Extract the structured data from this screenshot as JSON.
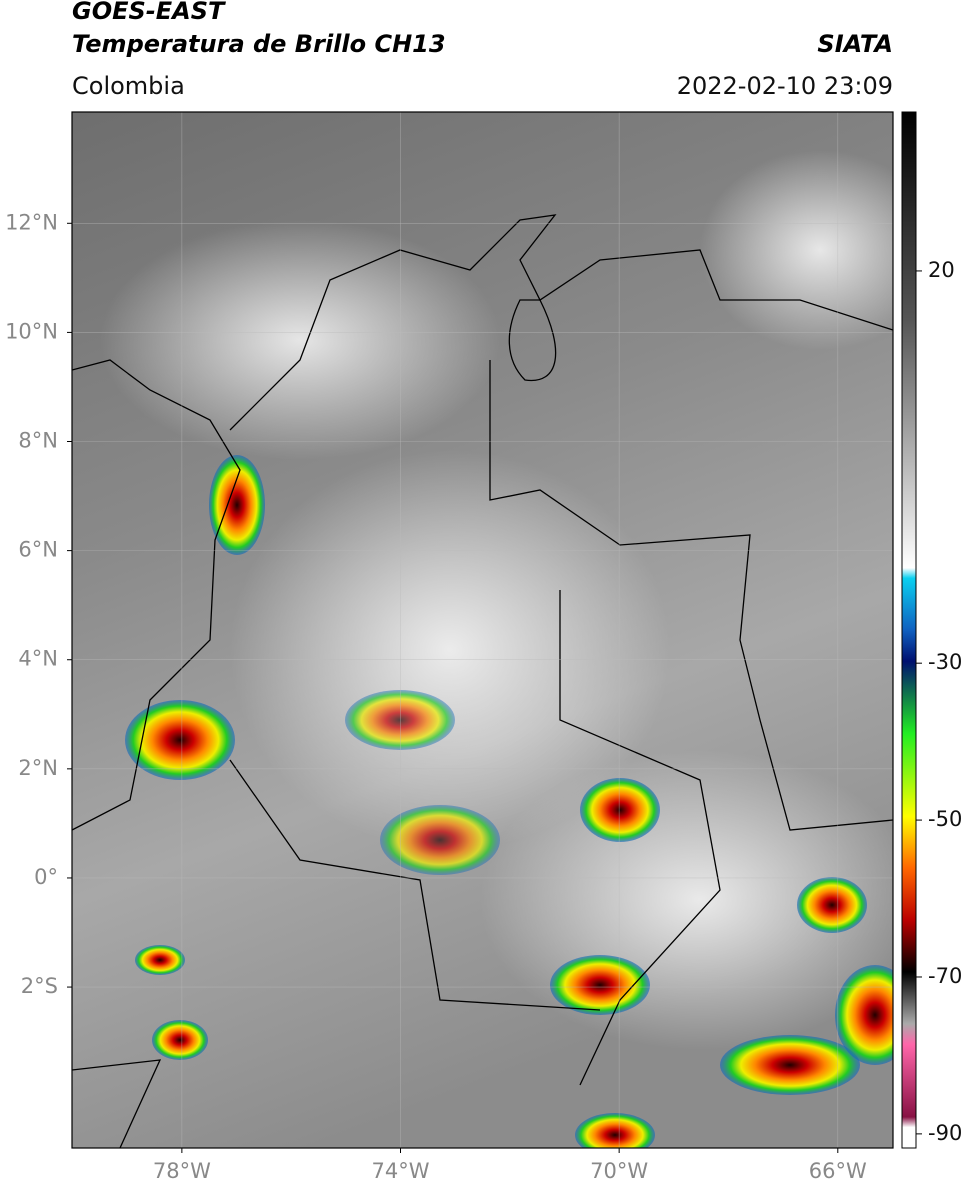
{
  "header": {
    "title": "GOES-EAST",
    "subtitle": "Temperatura de Brillo CH13",
    "region": "Colombia",
    "source": "SIATA",
    "datetime": "2022-02-10 23:09"
  },
  "map": {
    "lat_ticks": [
      {
        "value": 12,
        "label": "12°N"
      },
      {
        "value": 10,
        "label": "10°N"
      },
      {
        "value": 8,
        "label": "8°N"
      },
      {
        "value": 6,
        "label": "6°N"
      },
      {
        "value": 4,
        "label": "4°N"
      },
      {
        "value": 2,
        "label": "2°N"
      },
      {
        "value": 0,
        "label": "0°"
      },
      {
        "value": -2,
        "label": "2°S"
      }
    ],
    "lon_ticks": [
      {
        "value": -78,
        "label": "78°W"
      },
      {
        "value": -74,
        "label": "74°W"
      },
      {
        "value": -70,
        "label": "70°W"
      },
      {
        "value": -66,
        "label": "66°W"
      }
    ]
  },
  "colorbar": {
    "ticks": [
      20,
      -30,
      -50,
      -70,
      -90
    ]
  }
}
